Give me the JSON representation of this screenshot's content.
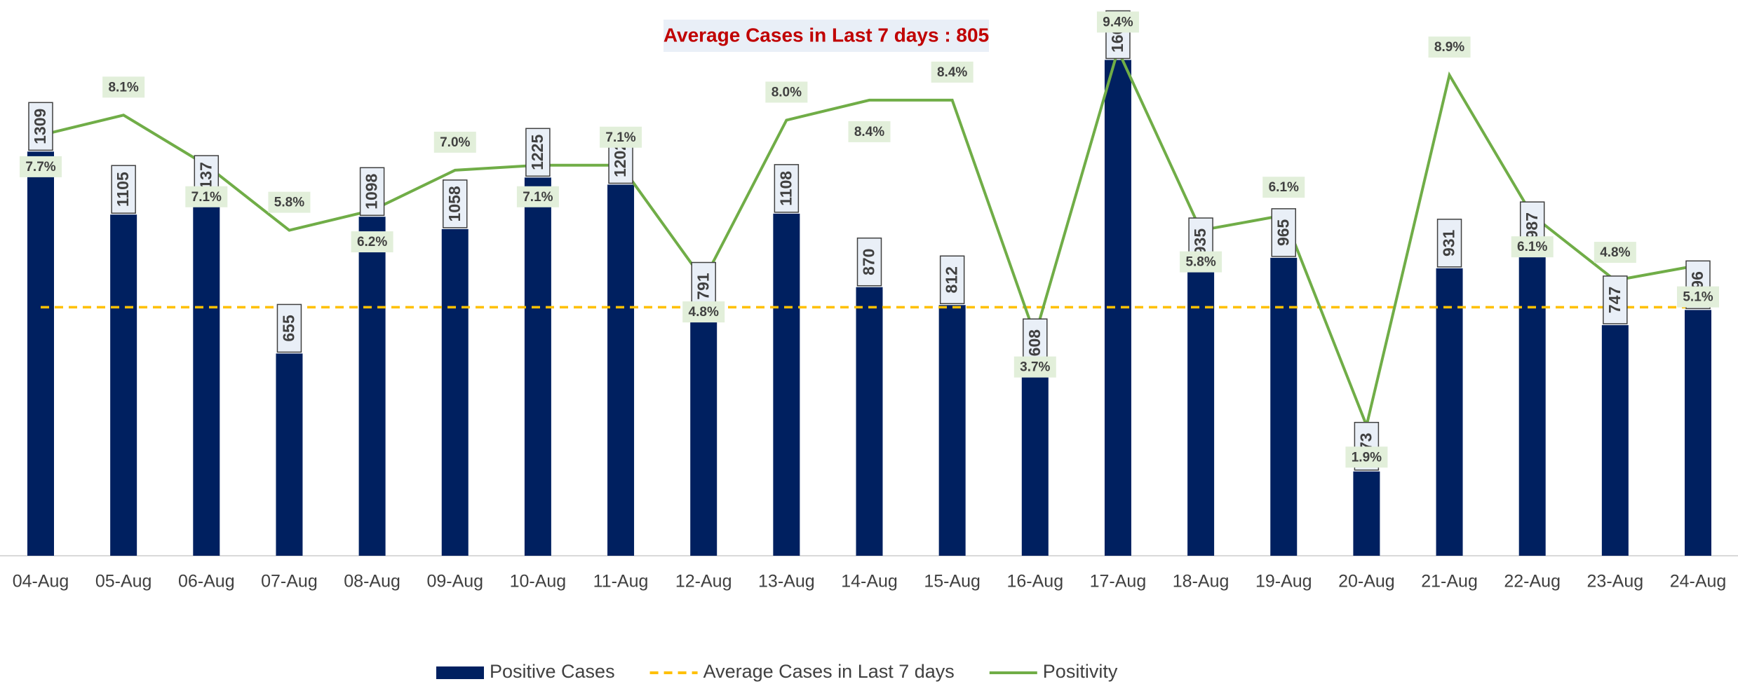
{
  "chart_data": {
    "type": "bar",
    "annotation": "Average Cases in Last 7 days : 805",
    "categories": [
      "04-Aug",
      "05-Aug",
      "06-Aug",
      "07-Aug",
      "08-Aug",
      "09-Aug",
      "10-Aug",
      "11-Aug",
      "12-Aug",
      "13-Aug",
      "14-Aug",
      "15-Aug",
      "16-Aug",
      "17-Aug",
      "18-Aug",
      "19-Aug",
      "20-Aug",
      "21-Aug",
      "22-Aug",
      "23-Aug",
      "24-Aug"
    ],
    "ylim": [
      0,
      1800
    ],
    "y2lim": [
      -0.7,
      10.4
    ],
    "series": [
      {
        "name": "Positive Cases",
        "type": "bar",
        "color": "#002060",
        "values": [
          1309,
          1105,
          1137,
          655,
          1098,
          1058,
          1225,
          1202,
          791,
          1108,
          870,
          812,
          608,
          1606,
          935,
          965,
          273,
          931,
          987,
          747,
          796
        ]
      },
      {
        "name": "Average Cases in Last 7 days",
        "type": "hline",
        "color": "#FFC000",
        "value": 805
      },
      {
        "name": "Positivity",
        "type": "line",
        "axis": "y2",
        "color": "#70AD47",
        "values": [
          7.7,
          8.1,
          7.1,
          5.8,
          6.2,
          7.0,
          7.1,
          7.1,
          4.8,
          8.0,
          8.4,
          8.4,
          3.7,
          9.4,
          5.8,
          6.1,
          1.9,
          8.9,
          6.1,
          4.8,
          5.1
        ],
        "value_labels": [
          "7.7%",
          "8.1%",
          "7.1%",
          "5.8%",
          "6.2%",
          "7.0%",
          "7.1%",
          "7.1%",
          "4.8%",
          "8.0%",
          "8.4%",
          "8.4%",
          "3.7%",
          "9.4%",
          "5.8%",
          "6.1%",
          "1.9%",
          "8.9%",
          "6.1%",
          "4.8%",
          "5.1%"
        ]
      }
    ]
  }
}
